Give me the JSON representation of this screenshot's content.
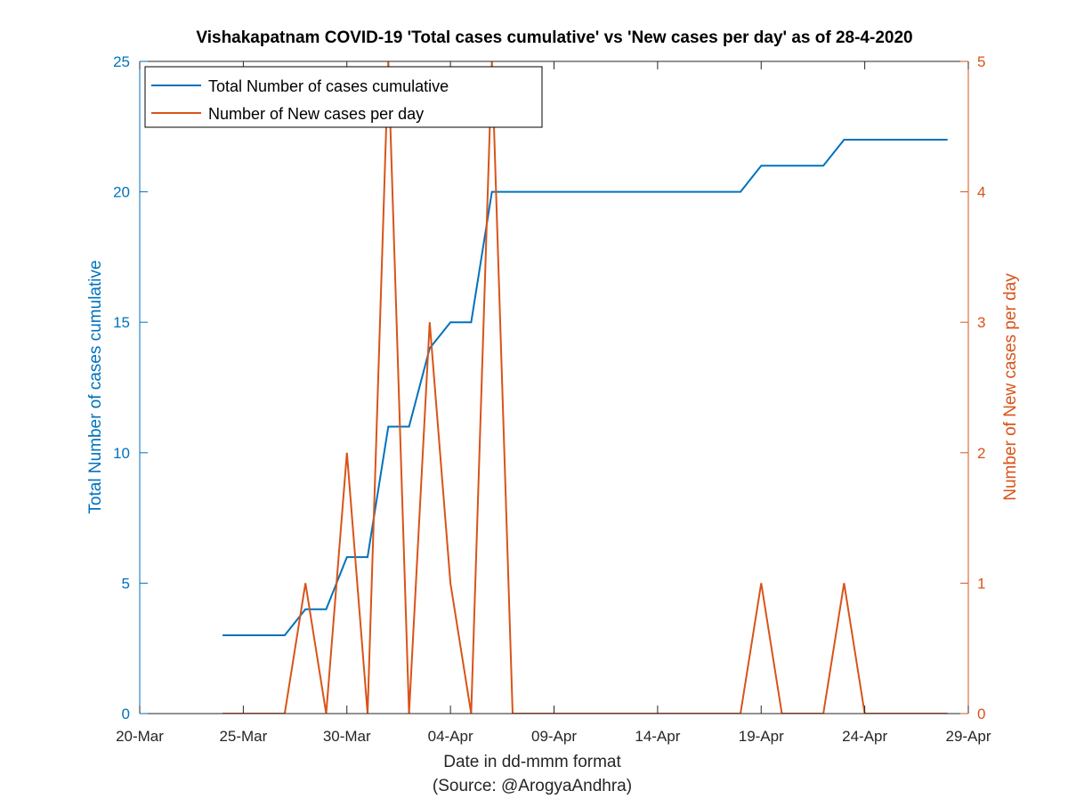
{
  "chart_data": {
    "type": "line",
    "title": "Vishakapatnam COVID-19 'Total cases cumulative' vs 'New cases per day' as of 28-4-2020",
    "xlabel": "Date in dd-mmm format",
    "xlabel_source": "(Source: @ArogyaAndhra)",
    "ylabel_left": "Total Number of cases cumulative",
    "ylabel_right": "Number of New cases per day",
    "x_range": [
      "2020-03-20",
      "2020-04-29"
    ],
    "x_ticks": [
      {
        "date": "2020-03-20",
        "label": "20-Mar"
      },
      {
        "date": "2020-03-25",
        "label": "25-Mar"
      },
      {
        "date": "2020-03-30",
        "label": "30-Mar"
      },
      {
        "date": "2020-04-04",
        "label": "04-Apr"
      },
      {
        "date": "2020-04-09",
        "label": "09-Apr"
      },
      {
        "date": "2020-04-14",
        "label": "14-Apr"
      },
      {
        "date": "2020-04-19",
        "label": "19-Apr"
      },
      {
        "date": "2020-04-24",
        "label": "24-Apr"
      },
      {
        "date": "2020-04-29",
        "label": "29-Apr"
      }
    ],
    "ylim_left": [
      0,
      25
    ],
    "y_ticks_left": [
      "0",
      "5",
      "10",
      "15",
      "20",
      "25"
    ],
    "ylim_right": [
      0,
      5
    ],
    "y_ticks_right": [
      "0",
      "1",
      "2",
      "3",
      "4",
      "5"
    ],
    "grid": false,
    "legend_position": "top-left",
    "dates": [
      "2020-03-24",
      "2020-03-25",
      "2020-03-26",
      "2020-03-27",
      "2020-03-28",
      "2020-03-29",
      "2020-03-30",
      "2020-03-31",
      "2020-04-01",
      "2020-04-02",
      "2020-04-03",
      "2020-04-04",
      "2020-04-05",
      "2020-04-06",
      "2020-04-07",
      "2020-04-08",
      "2020-04-09",
      "2020-04-10",
      "2020-04-11",
      "2020-04-12",
      "2020-04-13",
      "2020-04-14",
      "2020-04-15",
      "2020-04-16",
      "2020-04-17",
      "2020-04-18",
      "2020-04-19",
      "2020-04-20",
      "2020-04-21",
      "2020-04-22",
      "2020-04-23",
      "2020-04-24",
      "2020-04-25",
      "2020-04-26",
      "2020-04-27",
      "2020-04-28"
    ],
    "series": [
      {
        "name": "Total Number of cases cumulative",
        "axis": "left",
        "color": "#0072BD",
        "values": [
          3,
          3,
          3,
          3,
          4,
          4,
          6,
          6,
          11,
          11,
          14,
          15,
          15,
          20,
          20,
          20,
          20,
          20,
          20,
          20,
          20,
          20,
          20,
          20,
          20,
          20,
          21,
          21,
          21,
          21,
          22,
          22,
          22,
          22,
          22,
          22
        ]
      },
      {
        "name": "Number of New cases per day",
        "axis": "right",
        "color": "#D95319",
        "values": [
          0,
          0,
          0,
          0,
          1,
          0,
          2,
          0,
          5,
          0,
          3,
          1,
          0,
          5,
          0,
          0,
          0,
          0,
          0,
          0,
          0,
          0,
          0,
          0,
          0,
          0,
          1,
          0,
          0,
          0,
          1,
          0,
          0,
          0,
          0,
          0
        ]
      }
    ]
  }
}
